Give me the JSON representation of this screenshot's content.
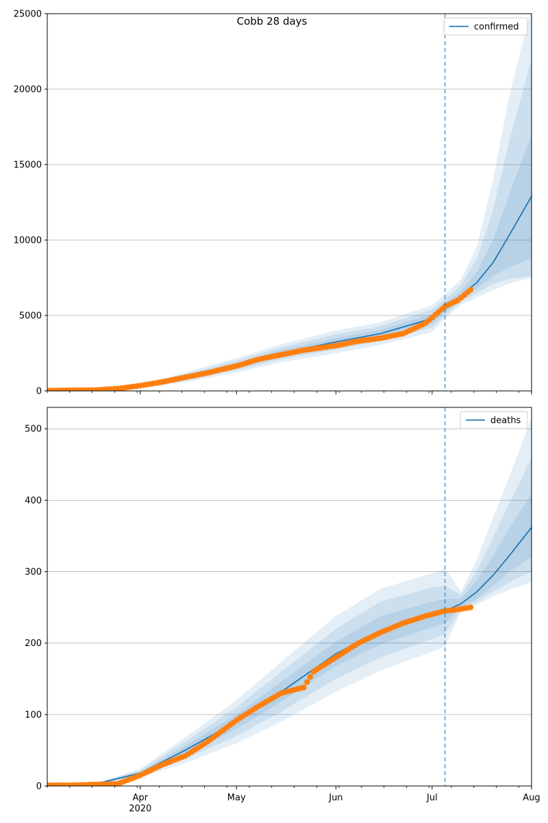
{
  "chart_data": [
    {
      "type": "line",
      "title": "Cobb 28 days",
      "xlabel": "",
      "ylabel": "",
      "x_axis": {
        "type": "date",
        "range": [
          "2020-03-03",
          "2020-08-01"
        ],
        "ticks": [
          {
            "date": "2020-04-01",
            "label": "Apr",
            "sublabel": "2020"
          },
          {
            "date": "2020-05-01",
            "label": "May",
            "sublabel": ""
          },
          {
            "date": "2020-06-01",
            "label": "Jun",
            "sublabel": ""
          },
          {
            "date": "2020-07-01",
            "label": "Jul",
            "sublabel": ""
          },
          {
            "date": "2020-08-01",
            "label": "Aug",
            "sublabel": ""
          }
        ]
      },
      "ylim": [
        0,
        25000
      ],
      "yticks": [
        0,
        5000,
        10000,
        15000,
        20000,
        25000
      ],
      "grid": "y",
      "legend": {
        "placement": "top-right",
        "entries": [
          "confirmed"
        ]
      },
      "vline_date": "2020-07-05",
      "colors": {
        "model": "#1f77b4",
        "observed": "#ff7f0e",
        "band": "#1f77b4",
        "vline": "#1f77b4"
      },
      "series": [
        {
          "name": "confirmed",
          "kind": "model",
          "x": [
            "2020-03-03",
            "2020-03-20",
            "2020-04-01",
            "2020-04-15",
            "2020-05-01",
            "2020-05-15",
            "2020-06-01",
            "2020-06-15",
            "2020-07-01",
            "2020-07-05",
            "2020-07-10",
            "2020-07-15",
            "2020-07-20",
            "2020-07-25",
            "2020-08-01"
          ],
          "values": [
            50,
            80,
            300,
            900,
            1700,
            2500,
            3250,
            3800,
            4800,
            5500,
            6300,
            7200,
            8500,
            10300,
            12900
          ],
          "bands": [
            {
              "lower": [
                45,
                70,
                260,
                790,
                1540,
                2300,
                3000,
                3550,
                4500,
                5200,
                6100,
                6800,
                7600,
                8200,
                8800
              ],
              "upper": [
                55,
                90,
                340,
                1010,
                1860,
                2700,
                3500,
                4050,
                5100,
                5800,
                6600,
                7900,
                10000,
                13000,
                17000
              ]
            },
            {
              "lower": [
                40,
                60,
                220,
                680,
                1380,
                2100,
                2750,
                3300,
                4200,
                5000,
                5900,
                6500,
                7100,
                7400,
                7600
              ],
              "upper": [
                60,
                100,
                380,
                1120,
                2020,
                2900,
                3750,
                4300,
                5400,
                6100,
                7000,
                8800,
                12000,
                16500,
                22000
              ]
            },
            {
              "lower": [
                35,
                50,
                180,
                570,
                1220,
                1900,
                2500,
                3050,
                3900,
                4800,
                5700,
                6200,
                6700,
                7100,
                7500
              ],
              "upper": [
                65,
                110,
                420,
                1230,
                2180,
                3100,
                4000,
                4550,
                5700,
                6400,
                7400,
                9600,
                14000,
                19500,
                25500
              ]
            }
          ]
        },
        {
          "name": "",
          "kind": "observed",
          "x": [
            "2020-03-03",
            "2020-03-10",
            "2020-03-18",
            "2020-03-25",
            "2020-04-01",
            "2020-04-08",
            "2020-04-15",
            "2020-04-22",
            "2020-05-01",
            "2020-05-08",
            "2020-05-15",
            "2020-05-22",
            "2020-06-01",
            "2020-06-08",
            "2020-06-15",
            "2020-06-22",
            "2020-06-29",
            "2020-07-05",
            "2020-07-09",
            "2020-07-13"
          ],
          "values": [
            20,
            40,
            60,
            150,
            350,
            600,
            900,
            1200,
            1650,
            2100,
            2400,
            2700,
            3000,
            3300,
            3500,
            3800,
            4500,
            5600,
            6000,
            6700
          ]
        }
      ]
    },
    {
      "type": "line",
      "title": "",
      "xlabel": "",
      "ylabel": "",
      "ylim": [
        0,
        530
      ],
      "yticks": [
        0,
        100,
        200,
        300,
        400,
        500
      ],
      "grid": "y",
      "legend": {
        "placement": "top-right",
        "entries": [
          "deaths"
        ]
      },
      "vline_date": "2020-07-05",
      "series": [
        {
          "name": "deaths",
          "kind": "model",
          "x": [
            "2020-03-03",
            "2020-03-20",
            "2020-04-01",
            "2020-04-15",
            "2020-05-01",
            "2020-05-15",
            "2020-06-01",
            "2020-06-15",
            "2020-07-01",
            "2020-07-05",
            "2020-07-10",
            "2020-07-15",
            "2020-07-20",
            "2020-07-25",
            "2020-08-01"
          ],
          "values": [
            1,
            5,
            18,
            50,
            90,
            132,
            185,
            218,
            240,
            245,
            255,
            272,
            295,
            322,
            362
          ],
          "bands": [
            {
              "lower": [
                0.9,
                4.5,
                16,
                44,
                80,
                118,
                168,
                198,
                222,
                228,
                250,
                262,
                280,
                300,
                320
              ],
              "upper": [
                1.1,
                5.5,
                20,
                56,
                100,
                146,
                202,
                238,
                258,
                262,
                262,
                288,
                322,
                360,
                410
              ]
            },
            {
              "lower": [
                0.8,
                4,
                14,
                38,
                70,
                104,
                150,
                180,
                206,
                212,
                248,
                258,
                272,
                285,
                300
              ],
              "upper": [
                1.2,
                6,
                22,
                62,
                110,
                160,
                220,
                258,
                278,
                280,
                268,
                302,
                348,
                395,
                460
              ]
            },
            {
              "lower": [
                0.7,
                3.5,
                12,
                32,
                60,
                90,
                132,
                162,
                188,
                195,
                244,
                254,
                265,
                275,
                285
              ],
              "upper": [
                1.3,
                6.5,
                24,
                68,
                120,
                174,
                238,
                276,
                298,
                305,
                272,
                318,
                375,
                432,
                515
              ]
            }
          ]
        },
        {
          "name": "",
          "kind": "observed",
          "x": [
            "2020-03-03",
            "2020-03-10",
            "2020-03-18",
            "2020-03-25",
            "2020-04-01",
            "2020-04-08",
            "2020-04-15",
            "2020-04-22",
            "2020-05-01",
            "2020-05-08",
            "2020-05-15",
            "2020-05-22",
            "2020-05-25",
            "2020-06-01",
            "2020-06-08",
            "2020-06-15",
            "2020-06-22",
            "2020-06-29",
            "2020-07-05",
            "2020-07-09",
            "2020-07-13"
          ],
          "values": [
            1,
            1,
            2,
            3,
            15,
            30,
            42,
            62,
            92,
            112,
            130,
            138,
            160,
            180,
            200,
            215,
            228,
            238,
            245,
            247,
            250
          ]
        }
      ]
    }
  ]
}
